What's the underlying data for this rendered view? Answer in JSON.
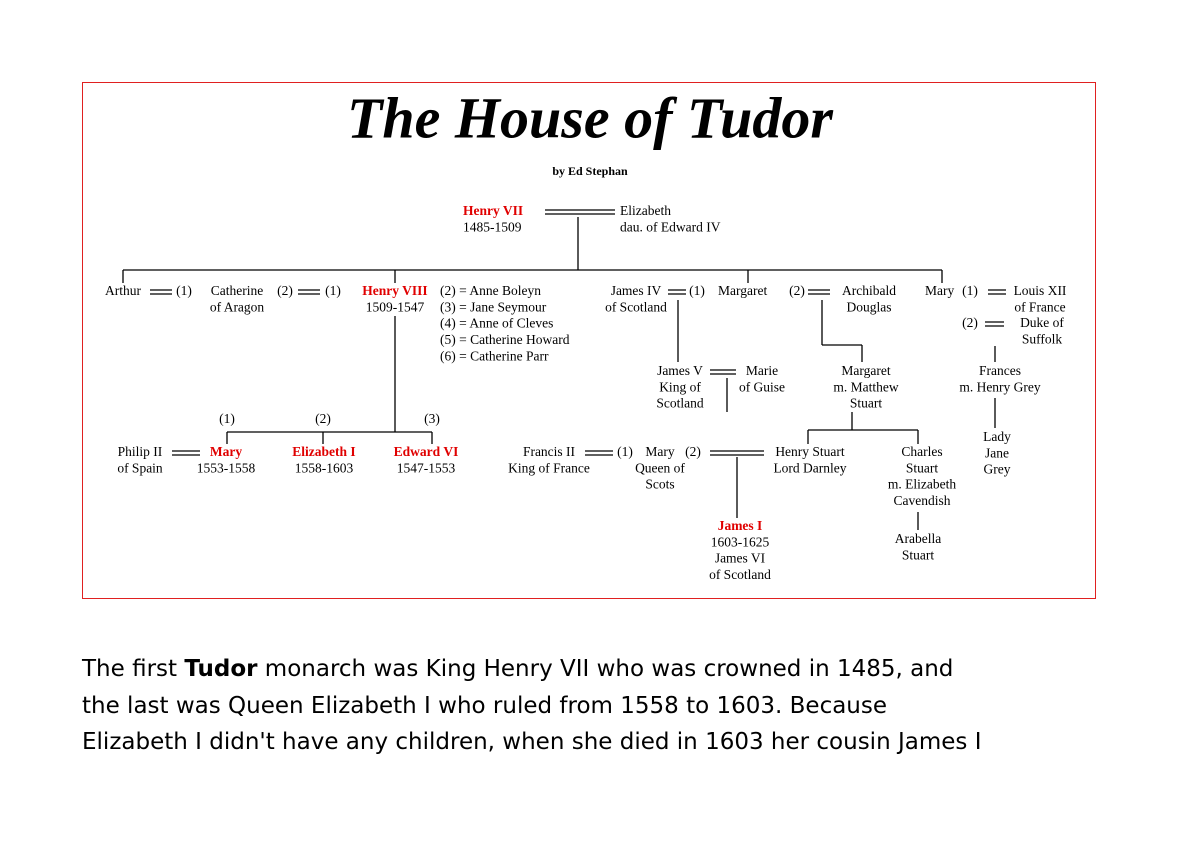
{
  "diagram": {
    "title": "The House of Tudor",
    "byline": "by Ed Stephan",
    "persons": [
      [
        "Henry VII",
        "1485-1509"
      ],
      [
        "Elizabeth",
        "dau. of Edward IV"
      ],
      [
        "Arthur"
      ],
      [
        "Catherine",
        "of Aragon"
      ],
      [
        "Henry VIII",
        "1509-1547"
      ],
      [
        "(2) = Anne Boleyn",
        "(3) = Jane Seymour",
        "(4) = Anne of Cleves",
        "(5) = Catherine Howard",
        "(6) = Catherine Parr"
      ],
      [
        "James IV",
        "of Scotland"
      ],
      [
        "Margaret"
      ],
      [
        "Archibald",
        "Douglas"
      ],
      [
        "Mary"
      ],
      [
        "Louis XII",
        "of France"
      ],
      [
        "Duke of",
        "Suffolk"
      ],
      [
        "James V",
        "King of",
        "Scotland"
      ],
      [
        "Marie",
        "of Guise"
      ],
      [
        "Margaret",
        "m. Matthew",
        "Stuart"
      ],
      [
        "Frances",
        "m. Henry Grey"
      ],
      [
        "Lady",
        "Jane",
        "Grey"
      ],
      [
        "Philip II",
        "of Spain"
      ],
      [
        "Mary",
        "1553-1558"
      ],
      [
        "Elizabeth I",
        "1558-1603"
      ],
      [
        "Edward VI",
        "1547-1553"
      ],
      [
        "Francis II",
        "King of France"
      ],
      [
        "Mary",
        "Queen of",
        "Scots"
      ],
      [
        "Henry Stuart",
        "Lord Darnley"
      ],
      [
        "Charles",
        "Stuart",
        "m. Elizabeth",
        "Cavendish"
      ],
      [
        "Arabella",
        "Stuart"
      ],
      [
        "James I",
        "1603-1625",
        "James VI",
        "of Scotland"
      ]
    ],
    "marriage_numbers": [
      "(1)",
      "(2)",
      "(1)",
      "(1)",
      "(2)",
      "(1)",
      "(2)",
      "(1)",
      "(2)",
      "(1)",
      "(2)",
      "(3)"
    ]
  },
  "paragraph": {
    "line1": [
      "The first ",
      "Tudor",
      " monarch was King Henry VII who was crowned in 1485, and"
    ],
    "line2": "the last was Queen Elizabeth I who ruled from 1558 to 1603. Because",
    "line3": "Elizabeth I didn't have any children, when she died in 1603 her cousin James I"
  }
}
